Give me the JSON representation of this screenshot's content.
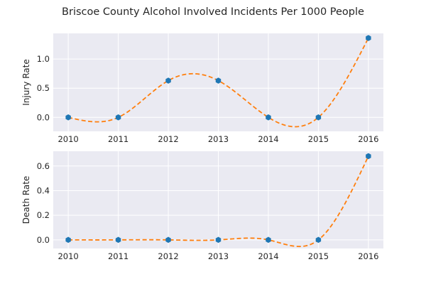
{
  "figure_title": "Briscoe County Alcohol Involved Incidents Per 1000 People",
  "colors": {
    "background": "#eaeaf2",
    "grid": "#ffffff",
    "marker": "#1f77b4",
    "line": "#ff7f0e"
  },
  "chart_data": [
    {
      "type": "scatter",
      "title": "",
      "ylabel": "Injury Rate",
      "xlabel": "",
      "x": [
        2010,
        2011,
        2012,
        2013,
        2014,
        2015,
        2016
      ],
      "values": [
        0.0,
        0.0,
        0.63,
        0.63,
        0.0,
        0.0,
        1.36
      ],
      "xlim": [
        2009.7,
        2016.3
      ],
      "ylim": [
        -0.24,
        1.44
      ],
      "yticks": [
        0.0,
        0.5,
        1.0
      ],
      "ytick_labels": [
        "0.0",
        "0.5",
        "1.0"
      ],
      "xtick_labels": [
        "2010",
        "2011",
        "2012",
        "2013",
        "2014",
        "2015",
        "2016"
      ],
      "fit_line": "smooth dashed spline through points",
      "grid": true
    },
    {
      "type": "scatter",
      "title": "",
      "ylabel": "Death Rate",
      "xlabel": "",
      "x": [
        2010,
        2011,
        2012,
        2013,
        2014,
        2015,
        2016
      ],
      "values": [
        0.0,
        0.0,
        0.0,
        0.0,
        0.0,
        0.0,
        0.68
      ],
      "xlim": [
        2009.7,
        2016.3
      ],
      "ylim": [
        -0.07,
        0.72
      ],
      "yticks": [
        0.0,
        0.2,
        0.4,
        0.6
      ],
      "ytick_labels": [
        "0.0",
        "0.2",
        "0.4",
        "0.6"
      ],
      "xtick_labels": [
        "2010",
        "2011",
        "2012",
        "2013",
        "2014",
        "2015",
        "2016"
      ],
      "fit_line": "smooth dashed spline through points",
      "grid": true
    }
  ]
}
